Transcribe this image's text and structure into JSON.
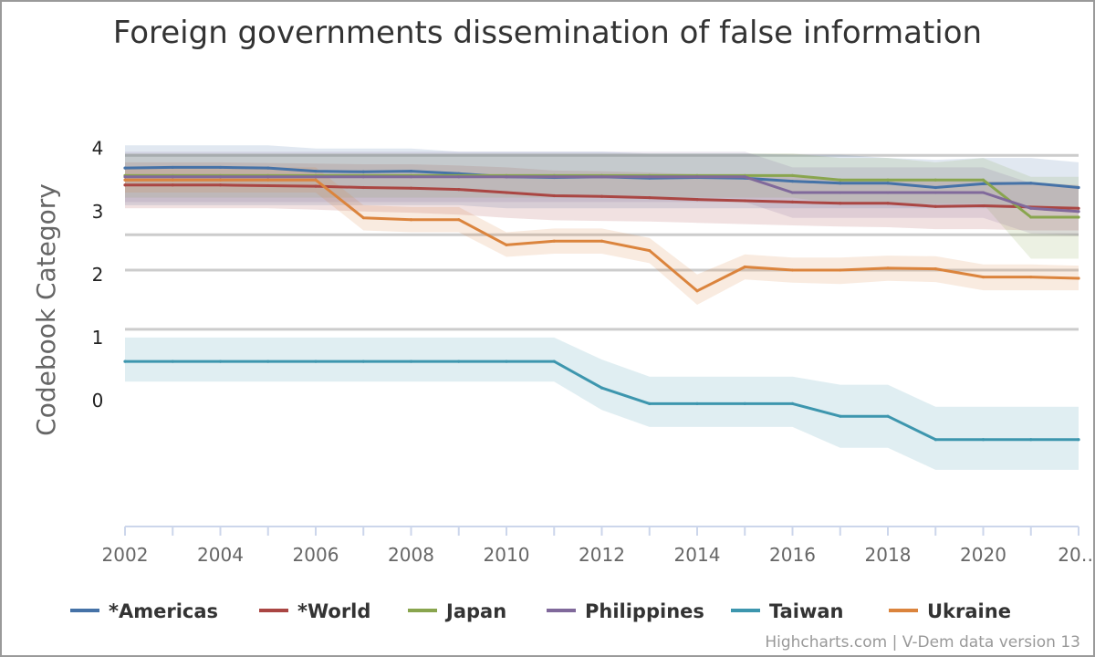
{
  "chart_data": {
    "type": "line",
    "title": "Foreign governments dissemination of false information",
    "ylabel": "Codebook Category",
    "xlabel": "",
    "x_tick_labels": [
      "2002",
      "2004",
      "2006",
      "2008",
      "2010",
      "2012",
      "2014",
      "2016",
      "2018",
      "2020",
      "20…"
    ],
    "y_tick_labels": [
      {
        "label": "4",
        "value": 4
      },
      {
        "label": "3",
        "value": 3
      },
      {
        "label": "2",
        "value": 2
      },
      {
        "label": "1",
        "value": 1
      },
      {
        "label": "0",
        "value": 0
      }
    ],
    "y_gridlines": [
      3.89,
      2.63,
      2.07,
      1.13
    ],
    "xlim": [
      2002,
      2022
    ],
    "ylim": [
      -2.0,
      4.3
    ],
    "x": [
      2002,
      2003,
      2004,
      2005,
      2006,
      2007,
      2008,
      2009,
      2010,
      2011,
      2012,
      2013,
      2014,
      2015,
      2016,
      2017,
      2018,
      2019,
      2020,
      2021,
      2022
    ],
    "legend_position": "bottom",
    "series": [
      {
        "name": "*Americas",
        "color": "#4572a7",
        "values": [
          3.69,
          3.7,
          3.7,
          3.69,
          3.64,
          3.63,
          3.64,
          3.6,
          3.55,
          3.54,
          3.55,
          3.53,
          3.54,
          3.53,
          3.48,
          3.45,
          3.45,
          3.38,
          3.44,
          3.45,
          3.38
        ],
        "lower": [
          3.1,
          3.1,
          3.1,
          3.1,
          3.1,
          3.1,
          3.1,
          3.1,
          3.05,
          3.05,
          3.05,
          3.05,
          3.05,
          3.05,
          3.05,
          3.05,
          3.05,
          3.05,
          3.05,
          3.05,
          3.05
        ],
        "upper": [
          4.05,
          4.05,
          4.05,
          4.05,
          4.0,
          4.0,
          4.0,
          3.95,
          3.95,
          3.95,
          3.95,
          3.92,
          3.92,
          3.92,
          3.9,
          3.9,
          3.85,
          3.82,
          3.85,
          3.85,
          3.78
        ]
      },
      {
        "name": "*World",
        "color": "#aa4643",
        "values": [
          3.42,
          3.42,
          3.42,
          3.41,
          3.4,
          3.38,
          3.37,
          3.35,
          3.3,
          3.25,
          3.24,
          3.22,
          3.19,
          3.17,
          3.15,
          3.13,
          3.13,
          3.08,
          3.09,
          3.07,
          3.05
        ],
        "lower": [
          3.05,
          3.05,
          3.05,
          3.05,
          3.03,
          3.0,
          2.98,
          2.95,
          2.9,
          2.86,
          2.85,
          2.84,
          2.82,
          2.8,
          2.78,
          2.76,
          2.75,
          2.72,
          2.72,
          2.7,
          2.7
        ],
        "upper": [
          3.78,
          3.78,
          3.78,
          3.77,
          3.76,
          3.75,
          3.75,
          3.73,
          3.7,
          3.65,
          3.64,
          3.62,
          3.59,
          3.57,
          3.55,
          3.52,
          3.52,
          3.48,
          3.48,
          3.46,
          3.42
        ]
      },
      {
        "name": "Japan",
        "color": "#89a54e",
        "values": [
          3.57,
          3.57,
          3.57,
          3.57,
          3.57,
          3.57,
          3.57,
          3.57,
          3.57,
          3.57,
          3.57,
          3.57,
          3.57,
          3.57,
          3.57,
          3.5,
          3.5,
          3.5,
          3.5,
          2.91,
          2.91
        ],
        "lower": [
          3.22,
          3.22,
          3.22,
          3.22,
          3.22,
          3.22,
          3.22,
          3.22,
          3.22,
          3.22,
          3.22,
          3.22,
          3.22,
          3.22,
          3.22,
          3.12,
          3.12,
          3.12,
          3.12,
          2.25,
          2.25
        ],
        "upper": [
          3.92,
          3.92,
          3.92,
          3.92,
          3.92,
          3.92,
          3.92,
          3.92,
          3.92,
          3.92,
          3.92,
          3.92,
          3.92,
          3.92,
          3.92,
          3.85,
          3.85,
          3.78,
          3.85,
          3.55,
          3.55
        ]
      },
      {
        "name": "Philippines",
        "color": "#80699b",
        "values": [
          3.55,
          3.55,
          3.55,
          3.55,
          3.55,
          3.55,
          3.55,
          3.55,
          3.55,
          3.55,
          3.55,
          3.55,
          3.55,
          3.55,
          3.3,
          3.3,
          3.3,
          3.3,
          3.3,
          3.05,
          3.0
        ],
        "lower": [
          3.15,
          3.15,
          3.15,
          3.15,
          3.15,
          3.15,
          3.15,
          3.15,
          3.15,
          3.15,
          3.15,
          3.15,
          3.15,
          3.15,
          2.9,
          2.9,
          2.9,
          2.9,
          2.9,
          2.65,
          2.62
        ],
        "upper": [
          3.95,
          3.95,
          3.95,
          3.95,
          3.95,
          3.95,
          3.95,
          3.95,
          3.95,
          3.95,
          3.95,
          3.95,
          3.95,
          3.95,
          3.7,
          3.7,
          3.7,
          3.7,
          3.7,
          3.45,
          3.4
        ]
      },
      {
        "name": "Taiwan",
        "color": "#3d96ae",
        "values": [
          0.62,
          0.62,
          0.62,
          0.62,
          0.62,
          0.62,
          0.62,
          0.62,
          0.62,
          0.62,
          0.2,
          -0.05,
          -0.05,
          -0.05,
          -0.05,
          -0.25,
          -0.25,
          -0.62,
          -0.62,
          -0.62,
          -0.62
        ],
        "lower": [
          0.3,
          0.3,
          0.3,
          0.3,
          0.3,
          0.3,
          0.3,
          0.3,
          0.3,
          0.3,
          -0.15,
          -0.42,
          -0.42,
          -0.42,
          -0.42,
          -0.75,
          -0.75,
          -1.1,
          -1.1,
          -1.1,
          -1.1
        ],
        "upper": [
          1.0,
          1.0,
          1.0,
          1.0,
          1.0,
          1.0,
          1.0,
          1.0,
          1.0,
          1.0,
          0.65,
          0.38,
          0.38,
          0.38,
          0.38,
          0.25,
          0.25,
          -0.1,
          -0.1,
          -0.1,
          -0.1
        ]
      },
      {
        "name": "Ukraine",
        "color": "#db843d",
        "values": [
          3.5,
          3.5,
          3.5,
          3.5,
          3.5,
          2.9,
          2.87,
          2.87,
          2.47,
          2.53,
          2.53,
          2.38,
          1.74,
          2.12,
          2.07,
          2.07,
          2.1,
          2.09,
          1.96,
          1.96,
          1.94
        ],
        "lower": [
          3.3,
          3.3,
          3.3,
          3.3,
          3.3,
          2.7,
          2.67,
          2.67,
          2.28,
          2.33,
          2.33,
          2.18,
          1.52,
          1.92,
          1.87,
          1.85,
          1.9,
          1.88,
          1.75,
          1.75,
          1.75
        ],
        "upper": [
          3.7,
          3.7,
          3.7,
          3.7,
          3.7,
          3.1,
          3.07,
          3.07,
          2.67,
          2.73,
          2.73,
          2.58,
          2.0,
          2.32,
          2.27,
          2.27,
          2.3,
          2.29,
          2.16,
          2.16,
          2.14
        ]
      }
    ]
  },
  "credits": "Highcharts.com | V-Dem data version 13"
}
